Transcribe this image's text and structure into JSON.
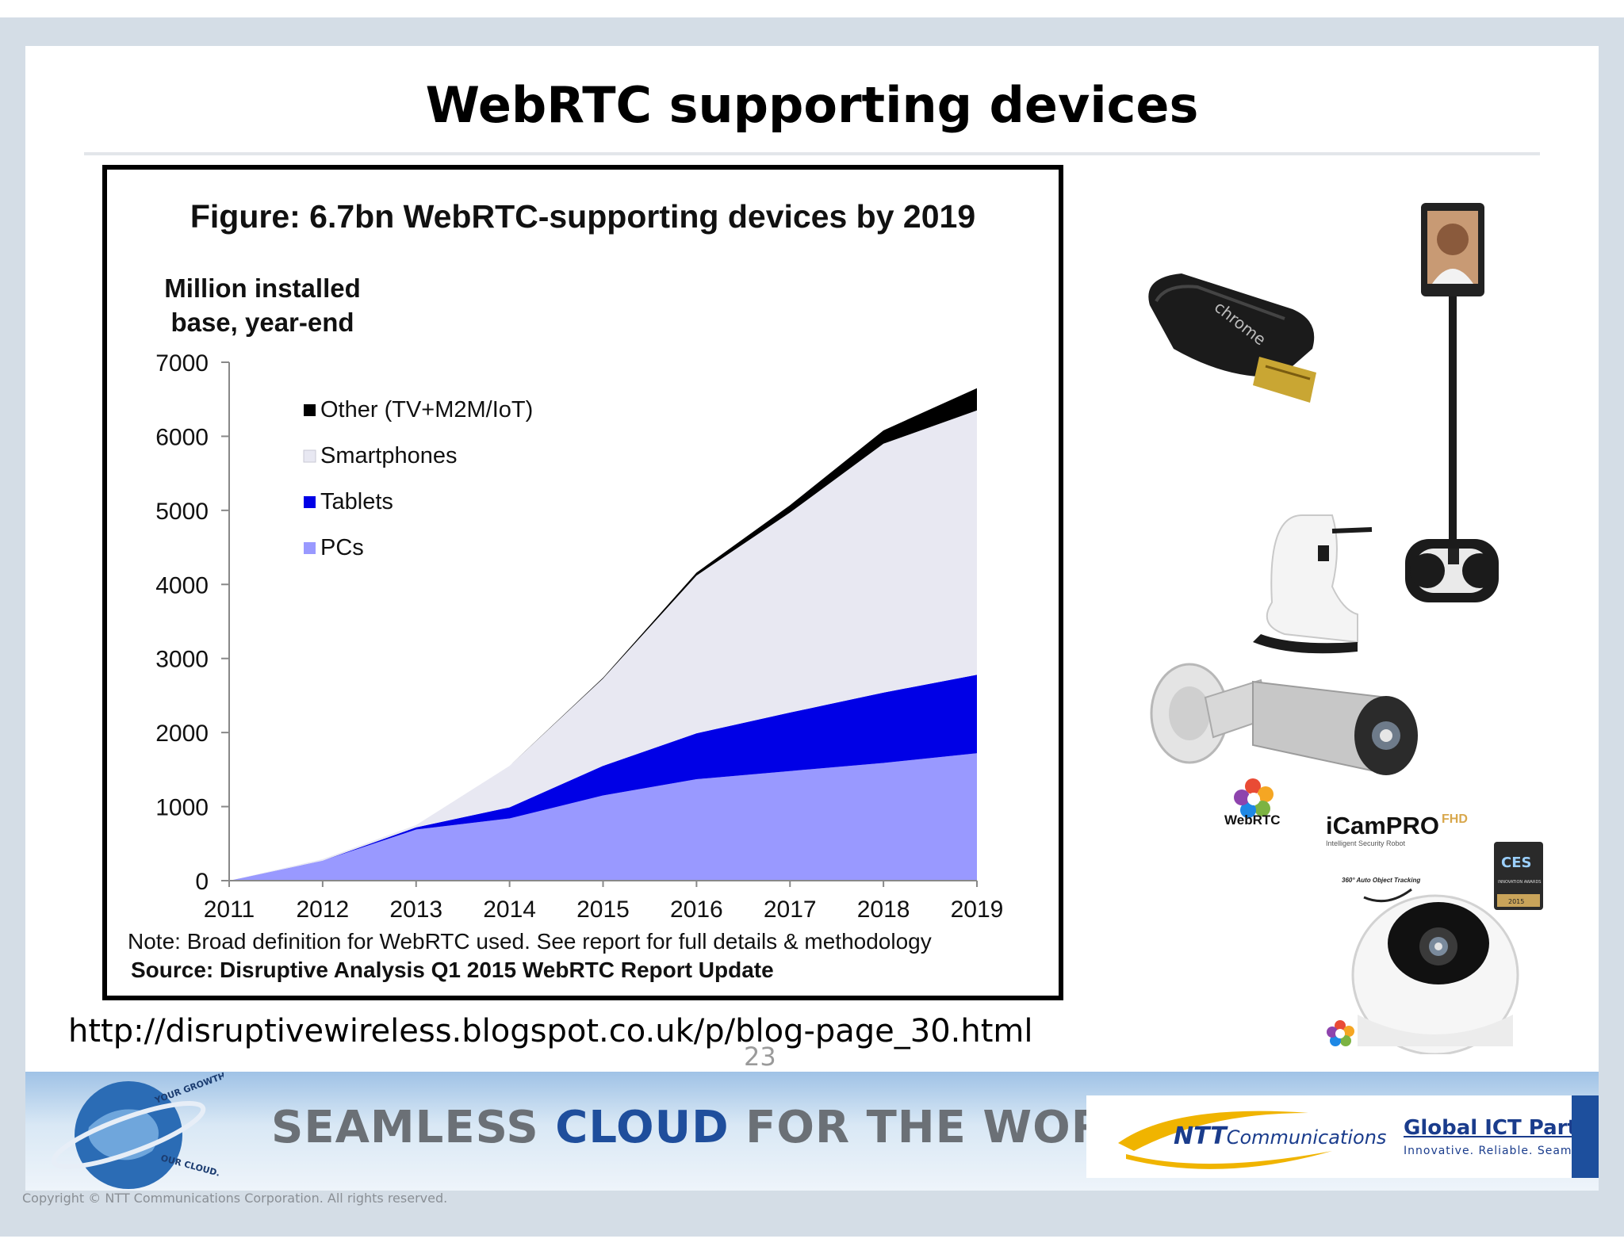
{
  "slide": {
    "title": "WebRTC supporting devices",
    "url": "http://disruptivewireless.blogspot.co.uk/p/blog-page_30.html",
    "page_number": "23",
    "copyright": "Copyright © NTT Communications Corporation. All rights reserved."
  },
  "banner": {
    "text_part1": "SEAMLESS ",
    "text_cloud": "CLOUD",
    "text_part2": " FOR THE WORLD",
    "globe_text1": "YOUR GROWTH.",
    "globe_text2": "OUR CLOUD.",
    "logo_brand": "NTT",
    "logo_rest": "Communications",
    "partner": "Global ICT Partner",
    "tagline": "Innovative. Reliable. Seamless."
  },
  "devices": {
    "chromecast_label": "chrome",
    "webrtc_label": "WebRTC",
    "icam_label": "iCamPRO",
    "icam_suffix": "FHD",
    "icam_sub": "Intelligent Security Robot",
    "ces_label": "CES",
    "ces_sub": "INNOVATION AWARDS",
    "ces_year": "2015",
    "tracking_label": "360° Auto Object Tracking"
  },
  "colors": {
    "pcs": "#9999ff",
    "tablets": "#0000e6",
    "smartphones": "#e8e8f2",
    "other": "#000000"
  },
  "chart_data": {
    "type": "area",
    "stacked": true,
    "title": "Figure: 6.7bn WebRTC-supporting devices by 2019",
    "ylabel_line1": "Million installed",
    "ylabel_line2": "base, year-end",
    "xlabel": "",
    "x": [
      "2011",
      "2012",
      "2013",
      "2014",
      "2015",
      "2016",
      "2017",
      "2018",
      "2019"
    ],
    "ylim": [
      0,
      7000
    ],
    "yticks": [
      0,
      1000,
      2000,
      3000,
      4000,
      5000,
      6000,
      7000
    ],
    "legend_position": "top-left",
    "series": [
      {
        "name": "PCs",
        "values": [
          0,
          270,
          690,
          840,
          1150,
          1370,
          1480,
          1590,
          1720
        ]
      },
      {
        "name": "Tablets",
        "values": [
          0,
          0,
          30,
          150,
          400,
          620,
          790,
          950,
          1060
        ]
      },
      {
        "name": "Smartphones",
        "values": [
          0,
          20,
          30,
          560,
          1180,
          2130,
          2700,
          3360,
          3570
        ]
      },
      {
        "name": "Other (TV+M2M/IoT)",
        "values": [
          0,
          0,
          0,
          0,
          10,
          40,
          100,
          180,
          300
        ]
      }
    ],
    "note": "Note: Broad definition for WebRTC used. See report for full details & methodology",
    "source": "Source: Disruptive Analysis Q1 2015 WebRTC Report Update"
  }
}
